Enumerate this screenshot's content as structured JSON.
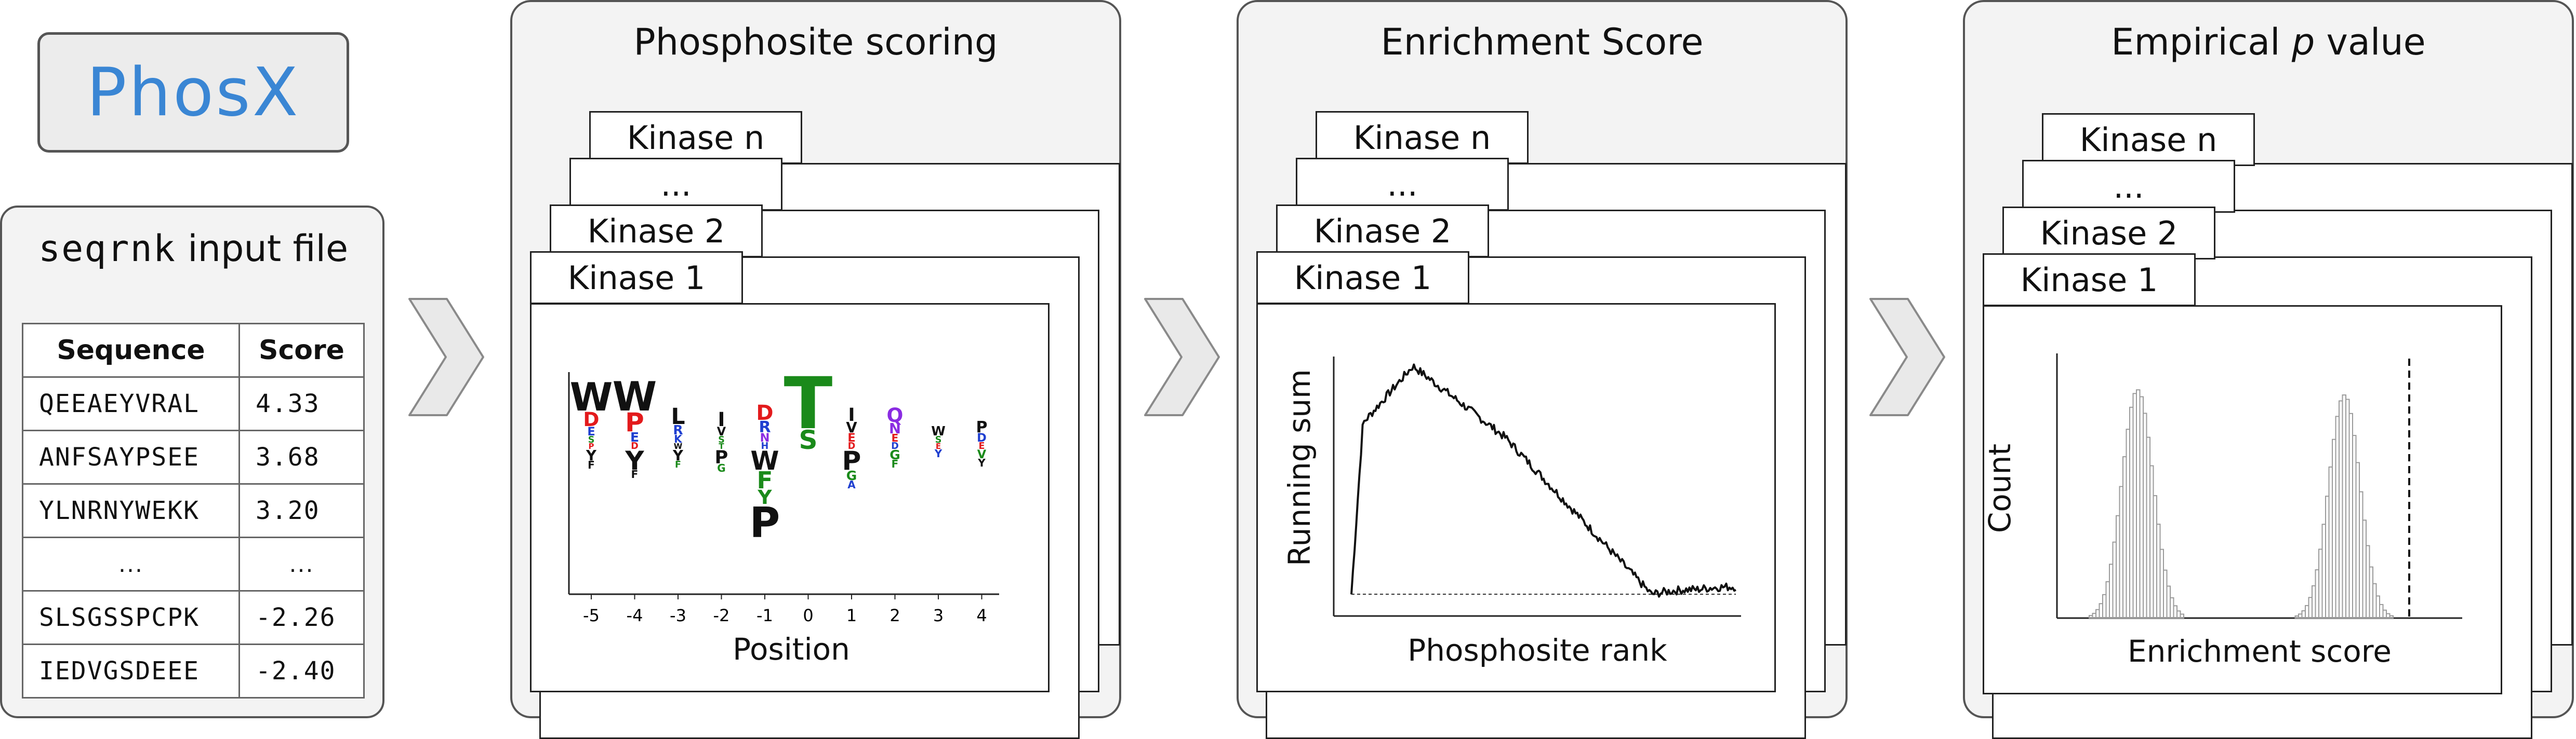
{
  "logo": {
    "text": "PhosX",
    "color": "#3a86d4"
  },
  "input": {
    "title_prefix": "seqrnk",
    "title_suffix": "input file",
    "headers": [
      "Sequence",
      "Score"
    ],
    "rows": [
      [
        "QEEAEYVRAL",
        "4.33"
      ],
      [
        "ANFSAYPSEE",
        "3.68"
      ],
      [
        "YLNRNYWEKK",
        "3.20"
      ],
      [
        "...",
        "..."
      ],
      [
        "SLSGSSPCPK",
        "-2.26"
      ],
      [
        "IEDVGSDEEE",
        "-2.40"
      ]
    ]
  },
  "panels": {
    "scoring": {
      "title": "Phosphosite scoring",
      "tabs": [
        "Kinase n",
        "...",
        "Kinase 2",
        "Kinase 1"
      ],
      "xlabel": "Position",
      "positions": [
        "-5",
        "-4",
        "-3",
        "-2",
        "-1",
        "0",
        "1",
        "2",
        "3",
        "4"
      ]
    },
    "enrichment": {
      "title": "Enrichment Score",
      "tabs": [
        "Kinase n",
        "...",
        "Kinase 2",
        "Kinase 1"
      ],
      "xlabel": "Phosphosite rank",
      "ylabel": "Running sum"
    },
    "pvalue": {
      "title_pre": "Empirical ",
      "title_italic": "p",
      "title_post": " value",
      "tabs": [
        "Kinase n",
        "...",
        "Kinase 2",
        "Kinase 1"
      ],
      "xlabel": "Enrichment score",
      "ylabel": "Count"
    }
  },
  "icons": [
    "chevron-right-icon",
    "chevron-right-icon",
    "chevron-right-icon"
  ],
  "colors": {
    "panel_bg": "#f3f3f3",
    "border": "#555555",
    "acidic_red": "#e31a1c",
    "basic_blue": "#1f3fd0",
    "polar_green": "#1a8a1a",
    "purple": "#8a2be2",
    "histogram": "#9a9a9a"
  }
}
